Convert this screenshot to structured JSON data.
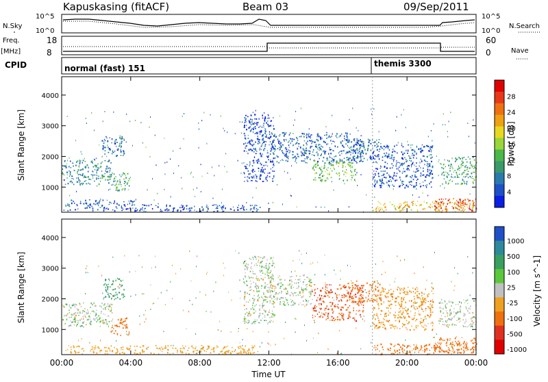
{
  "header": {
    "station": "Kapuskasing (fitACF)",
    "beam": "Beam 03",
    "date": "09/Sep/2011"
  },
  "noise_panel": {
    "left_label": "N.Sky",
    "right_label": "N.Search",
    "tick_top": "10^5",
    "tick_bottom": "10^0"
  },
  "freq_panel": {
    "left_label_1": "Freq.",
    "left_label_2": "[MHz]",
    "right_label": "Nave",
    "left_ticks": [
      "18",
      "8"
    ],
    "right_ticks": [
      "60",
      "0"
    ]
  },
  "cpid_panel": {
    "label": "CPID",
    "modes": [
      {
        "name": "normal (fast) 151",
        "start_hour": 0
      },
      {
        "name": "themis 3300",
        "start_hour": 18
      }
    ]
  },
  "chart_data": [
    {
      "type": "heatmap",
      "title": "",
      "xlabel": "Time UT",
      "ylabel": "Slant Range [km]",
      "xlim": [
        0,
        24
      ],
      "ylim": [
        180,
        4600
      ],
      "x_ticks": [
        "00:00",
        "04:00",
        "08:00",
        "12:00",
        "16:00",
        "20:00",
        "00:00"
      ],
      "y_ticks": [
        "1000",
        "2000",
        "3000",
        "4000"
      ],
      "colorbar": {
        "label": "Power [dB]",
        "ticks": [
          "4",
          "8",
          "12",
          "16",
          "20",
          "24",
          "28"
        ],
        "colors": [
          "#0a1ee6",
          "#1e50c8",
          "#2a7ab0",
          "#3a9a6a",
          "#4ab84a",
          "#98d63a",
          "#e8d820",
          "#f0a010",
          "#f07010",
          "#e83818",
          "#e00000"
        ]
      },
      "echo_regions": [
        {
          "t0": 0.0,
          "t1": 2.9,
          "r0": 1100,
          "r1": 1900,
          "value": 10
        },
        {
          "t0": 2.8,
          "t1": 3.9,
          "r0": 900,
          "r1": 1500,
          "value": 12
        },
        {
          "t0": 2.3,
          "t1": 3.6,
          "r0": 2000,
          "r1": 2700,
          "value": 8
        },
        {
          "t0": 0.2,
          "t1": 4.2,
          "r0": 250,
          "r1": 600,
          "value": 6
        },
        {
          "t0": 4.0,
          "t1": 11.5,
          "r0": 220,
          "r1": 450,
          "value": 6
        },
        {
          "t0": 10.5,
          "t1": 12.3,
          "r0": 1200,
          "r1": 3400,
          "value": 5
        },
        {
          "t0": 12.0,
          "t1": 17.5,
          "r0": 1800,
          "r1": 2800,
          "value": 7
        },
        {
          "t0": 14.5,
          "t1": 17.0,
          "r0": 1200,
          "r1": 1900,
          "value": 14
        },
        {
          "t0": 16.5,
          "t1": 18.5,
          "r0": 1900,
          "r1": 2600,
          "value": 8
        },
        {
          "t0": 18.0,
          "t1": 21.5,
          "r0": 1000,
          "r1": 2400,
          "value": 6
        },
        {
          "t0": 18.0,
          "t1": 24.0,
          "r0": 200,
          "r1": 550,
          "value": 20
        },
        {
          "t0": 21.8,
          "t1": 24.0,
          "r0": 1100,
          "r1": 2000,
          "value": 12
        },
        {
          "t0": 21.5,
          "t1": 24.0,
          "r0": 250,
          "r1": 650,
          "value": 26
        }
      ]
    },
    {
      "type": "heatmap",
      "title": "",
      "xlabel": "Time UT",
      "ylabel": "Slant Range [km]",
      "xlim": [
        0,
        24
      ],
      "ylim": [
        180,
        4600
      ],
      "x_ticks": [
        "00:00",
        "04:00",
        "08:00",
        "12:00",
        "16:00",
        "20:00",
        "00:00"
      ],
      "y_ticks": [
        "1000",
        "2000",
        "3000",
        "4000"
      ],
      "colorbar": {
        "label": "Velocity [m s^-1]",
        "ticks": [
          "1000",
          "500",
          "100",
          "25",
          "-25",
          "-100",
          "-500",
          "-1000"
        ],
        "colors": [
          "#2050c8",
          "#2e8a9a",
          "#3aa060",
          "#5ac83a",
          "#c0c0c0",
          "#f0a020",
          "#f07010",
          "#e03020",
          "#e00000"
        ]
      },
      "echo_regions": [
        {
          "t0": 0.0,
          "t1": 2.9,
          "r0": 1100,
          "r1": 1900,
          "value": 0
        },
        {
          "t0": 2.8,
          "t1": 3.9,
          "r0": 800,
          "r1": 1400,
          "value": -300
        },
        {
          "t0": 2.3,
          "t1": 3.6,
          "r0": 2000,
          "r1": 2700,
          "value": 80
        },
        {
          "t0": 0.2,
          "t1": 11.5,
          "r0": 220,
          "r1": 500,
          "value": -60
        },
        {
          "t0": 10.5,
          "t1": 12.3,
          "r0": 1200,
          "r1": 3400,
          "value": 0
        },
        {
          "t0": 12.0,
          "t1": 14.5,
          "r0": 1800,
          "r1": 2800,
          "value": 0
        },
        {
          "t0": 14.5,
          "t1": 17.5,
          "r0": 1300,
          "r1": 2500,
          "value": -500
        },
        {
          "t0": 16.5,
          "t1": 18.5,
          "r0": 1900,
          "r1": 2600,
          "value": -150
        },
        {
          "t0": 18.0,
          "t1": 21.5,
          "r0": 1000,
          "r1": 2400,
          "value": -80
        },
        {
          "t0": 18.0,
          "t1": 24.0,
          "r0": 200,
          "r1": 550,
          "value": -150
        },
        {
          "t0": 21.8,
          "t1": 24.0,
          "r0": 1100,
          "r1": 2000,
          "value": 0
        },
        {
          "t0": 21.5,
          "t1": 24.0,
          "r0": 250,
          "r1": 750,
          "value": -200
        }
      ]
    }
  ]
}
